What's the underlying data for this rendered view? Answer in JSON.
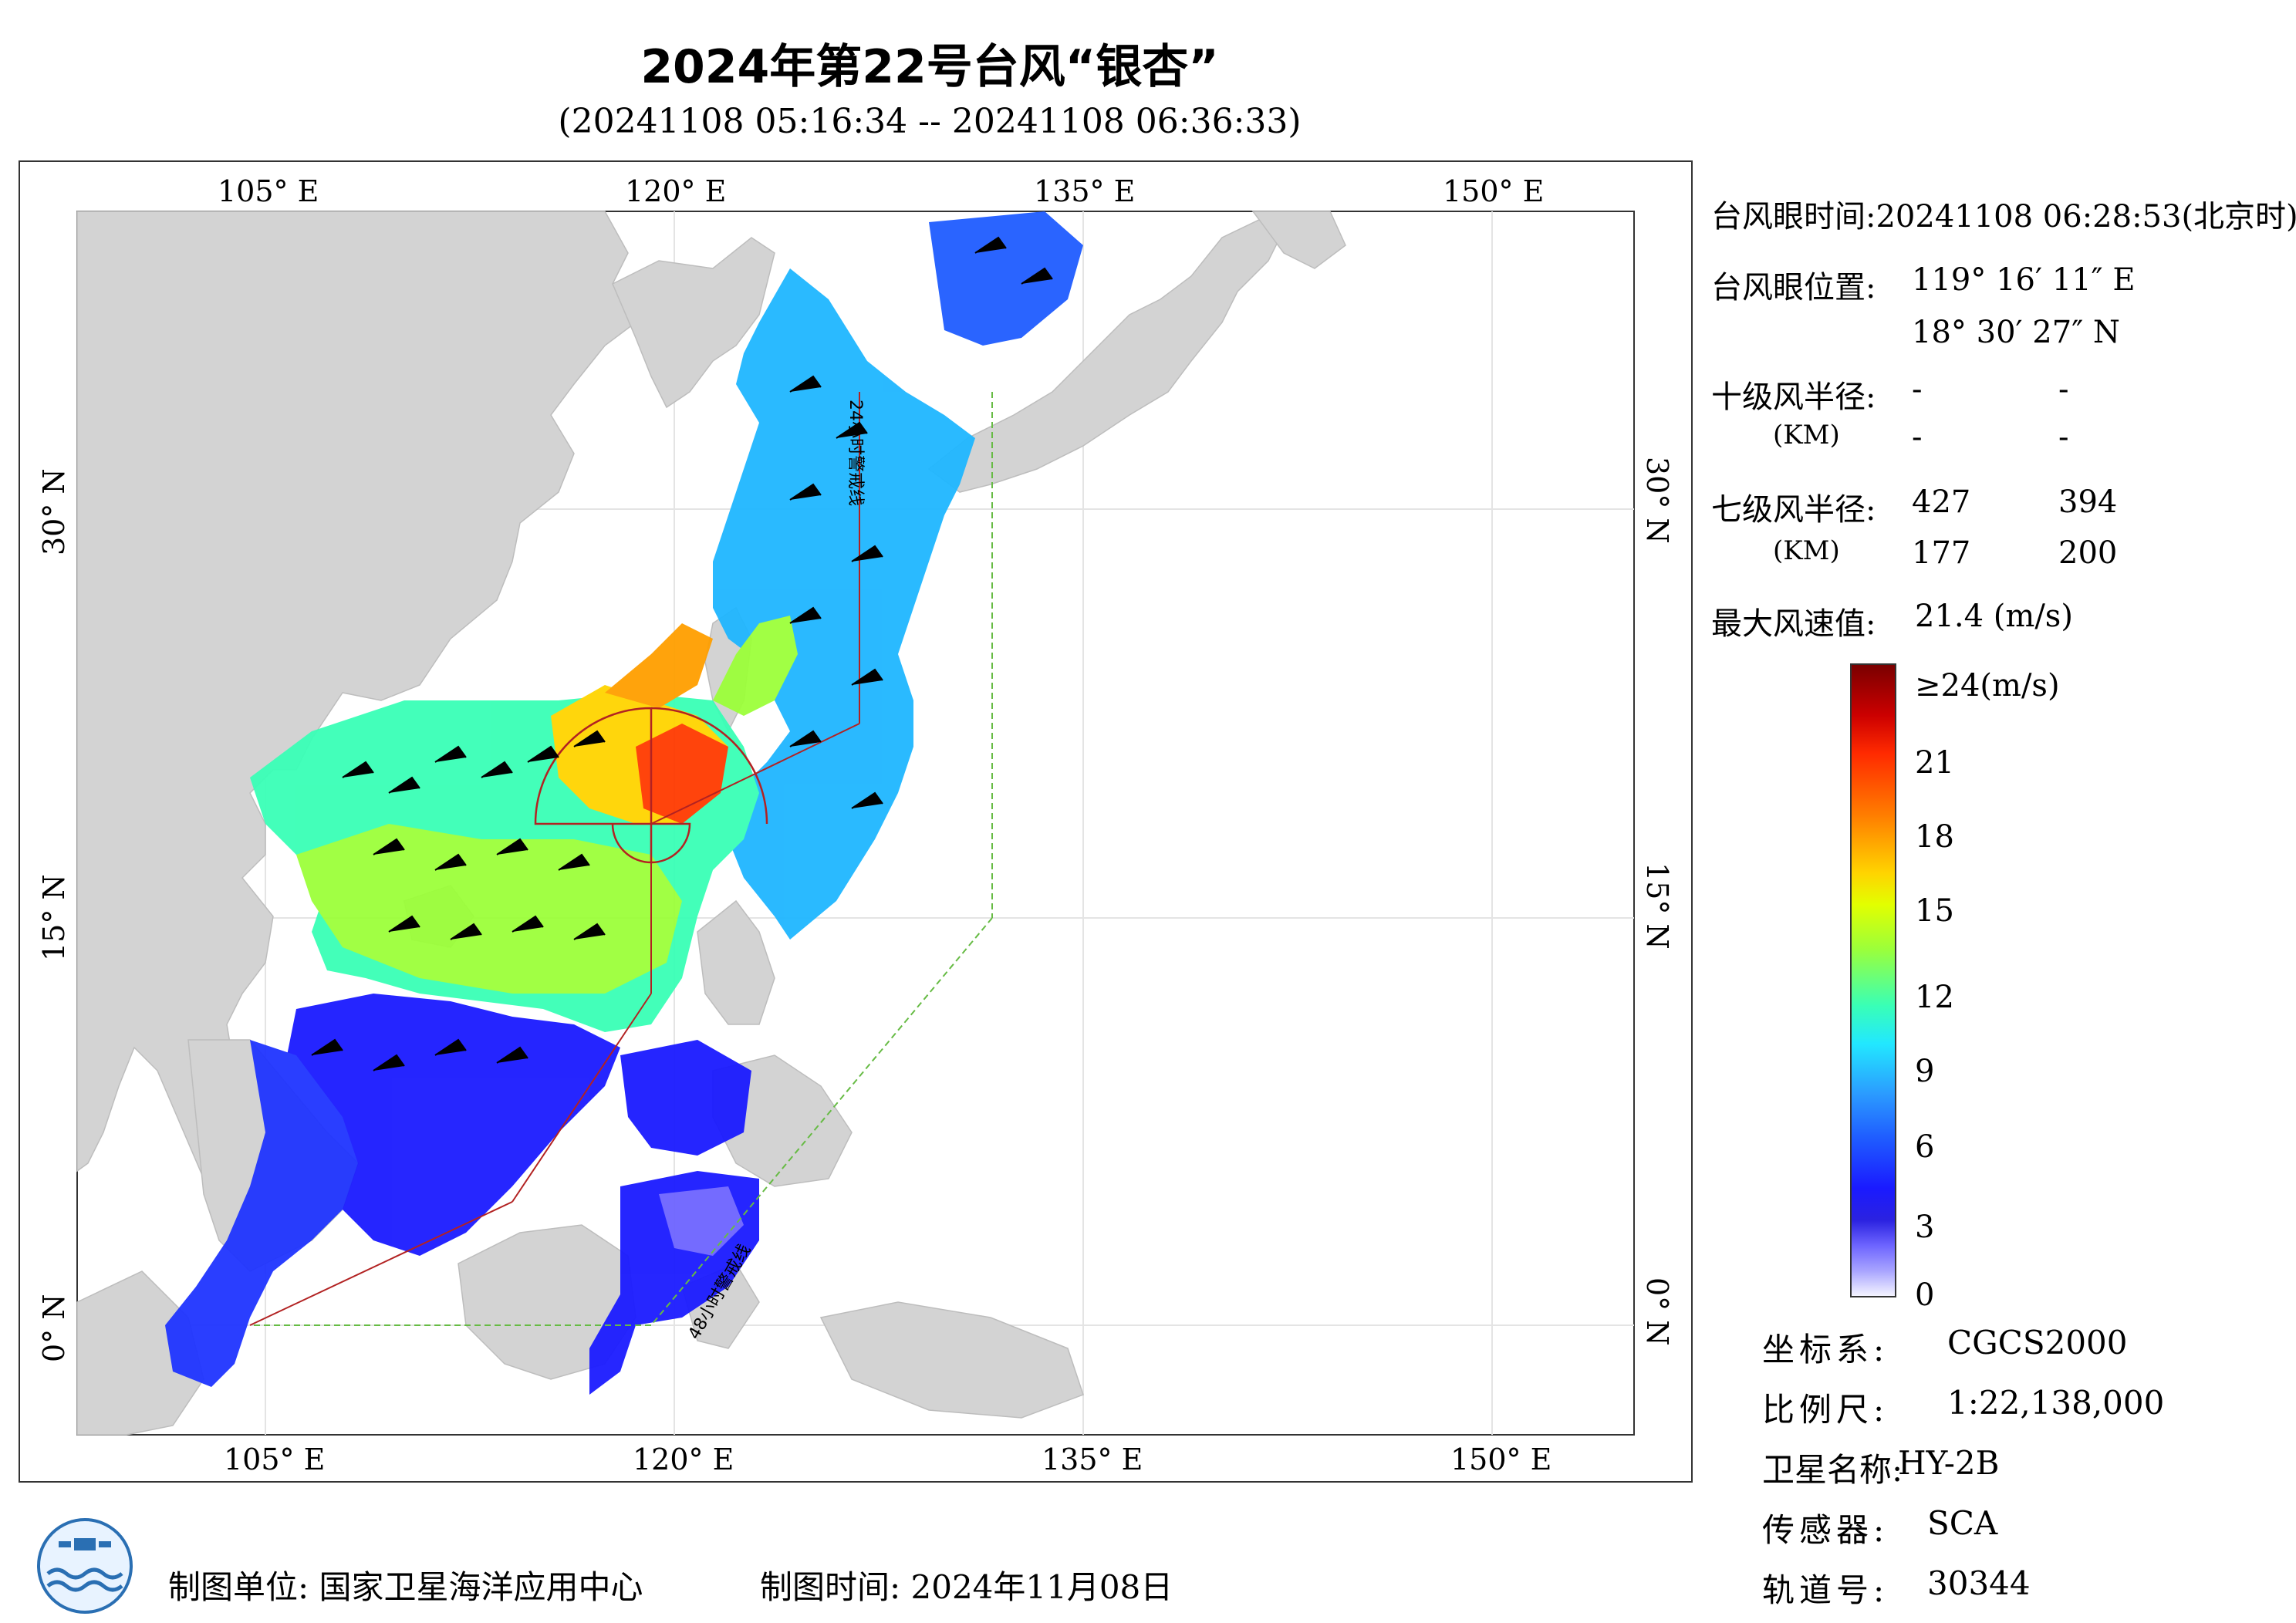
{
  "title": "2024年第22号台风“银杏”",
  "subtitle": "(20241108 05:16:34 -- 20241108 06:36:33)",
  "axes": {
    "top_lon": [
      "105° E",
      "120° E",
      "135° E",
      "150° E"
    ],
    "bottom_lon": [
      "105° E",
      "120° E",
      "135° E",
      "150° E"
    ],
    "left_lat": [
      "30° N",
      "15° N",
      "0° N"
    ],
    "right_lat": [
      "30° N",
      "15° N",
      "0° N"
    ]
  },
  "map_labels": {
    "line_24h": "24小时警戒线",
    "line_48h": "48小时警戒线"
  },
  "info": {
    "eye_time_label": "台风眼时间:",
    "eye_time_value": "20241108 06:28:53(北京时)",
    "eye_pos_label": "台风眼位置:",
    "eye_lon": "119° 16′ 11″ E",
    "eye_lat": "18° 30′ 27″ N",
    "r10_label": "十级风半径:",
    "r10_unit": "(KM)",
    "r10_values": [
      "-",
      "-",
      "-",
      "-"
    ],
    "r7_label": "七级风半径:",
    "r7_unit": "(KM)",
    "r7_values": [
      "427",
      "394",
      "177",
      "200"
    ],
    "max_wind_label": "最大风速值:",
    "max_wind_value": "21.4  (m/s)"
  },
  "colorbar": {
    "ticks": [
      "≥24(m/s)",
      "21",
      "18",
      "15",
      "12",
      "9",
      "6",
      "3",
      "0"
    ]
  },
  "meta": {
    "crs_label": "坐标系:",
    "crs_value": "CGCS2000",
    "scale_label": "比例尺:",
    "scale_value": "1:22,138,000",
    "sat_label": "卫星名称:",
    "sat_value": "HY-2B",
    "sensor_label": "传感器:",
    "sensor_value": "SCA",
    "orbit_label": "轨道号:",
    "orbit_value": "30344"
  },
  "footer": {
    "org": "制图单位:  国家卫星海洋应用中心",
    "time": "制图时间:   2024年11月08日"
  },
  "colors": {
    "land": "#d3d3d3",
    "sea": "#ffffff",
    "wind_low": "#1a1aff",
    "wind_high": "#cc0000",
    "track": "#b22222",
    "warning_48h": "#66bb44"
  }
}
